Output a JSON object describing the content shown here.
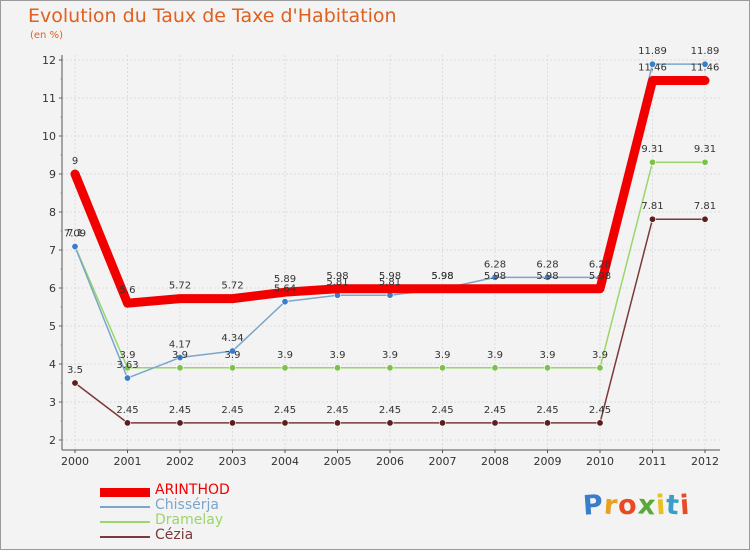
{
  "page": {
    "title": "Evolution du Taux de Taxe d'Habitation",
    "subtitle": "(en %)"
  },
  "logo": {
    "text": "Proxiti",
    "colors": [
      "#3a7ec9",
      "#e8a020",
      "#e84a26",
      "#5aa83a",
      "#e8c020",
      "#3a9ec9",
      "#e84a26"
    ]
  },
  "chart_data": {
    "type": "line",
    "title": "Evolution du Taux de Taxe d'Habitation",
    "ylabel": "(en %)",
    "xlabel": "",
    "ylim": [
      2,
      12
    ],
    "yticks": [
      "2",
      "3",
      "4",
      "5",
      "6",
      "7",
      "8",
      "9",
      "10",
      "11",
      "12"
    ],
    "categories": [
      "2000",
      "2001",
      "2002",
      "2003",
      "2004",
      "2005",
      "2006",
      "2007",
      "2008",
      "2009",
      "2010",
      "2011",
      "2012"
    ],
    "grid": true,
    "legend": "bottom-left",
    "series": [
      {
        "name": "ARINTHOD",
        "color": "#f20000",
        "width": 9,
        "values": [
          9,
          5.6,
          5.72,
          5.72,
          5.89,
          5.98,
          5.98,
          5.98,
          5.98,
          5.98,
          5.98,
          11.46,
          11.46
        ],
        "labels": [
          "9",
          "5.6",
          "5.72",
          "5.72",
          "5.89",
          "5.98",
          "5.98",
          "5.98",
          "5.98",
          "5.98",
          "5.98",
          "11.46",
          "11.46"
        ]
      },
      {
        "name": "Chissérja",
        "color": "#7aa6cc",
        "width": 1.5,
        "marker": "#3a7ec9",
        "values": [
          7.09,
          3.63,
          4.17,
          4.34,
          5.64,
          5.81,
          5.81,
          5.98,
          6.28,
          6.28,
          6.28,
          11.89,
          11.89
        ],
        "labels": [
          "7.09",
          "3.63",
          "4.17",
          "4.34",
          "5.64",
          "5.81",
          "5.81",
          "5.98",
          "6.28",
          "6.28",
          "6.28",
          "11.89",
          "11.89"
        ]
      },
      {
        "name": "Dramelay",
        "color": "#9ad66a",
        "width": 1.5,
        "marker": "#7cc24a",
        "values": [
          7.1,
          3.9,
          3.9,
          3.9,
          3.9,
          3.9,
          3.9,
          3.9,
          3.9,
          3.9,
          3.9,
          9.31,
          9.31
        ],
        "labels": [
          "7.1",
          "3.9",
          "3.9",
          "3.9",
          "3.9",
          "3.9",
          "3.9",
          "3.9",
          "3.9",
          "3.9",
          "3.9",
          "9.31",
          "9.31"
        ]
      },
      {
        "name": "Cézia",
        "color": "#7a3a3a",
        "width": 1.5,
        "marker": "#5a1e1e",
        "values": [
          3.5,
          2.45,
          2.45,
          2.45,
          2.45,
          2.45,
          2.45,
          2.45,
          2.45,
          2.45,
          2.45,
          7.81,
          7.81
        ],
        "labels": [
          "3.5",
          "2.45",
          "2.45",
          "2.45",
          "2.45",
          "2.45",
          "2.45",
          "2.45",
          "2.45",
          "2.45",
          "2.45",
          "7.81",
          "7.81"
        ]
      }
    ]
  }
}
